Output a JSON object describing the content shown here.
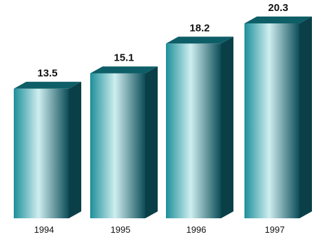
{
  "chart_data": {
    "type": "bar",
    "title": "",
    "xlabel": "",
    "ylabel": "",
    "categories": [
      "1994",
      "1995",
      "1996",
      "1997"
    ],
    "values": [
      13.5,
      15.1,
      18.2,
      20.3
    ],
    "value_labels": [
      "13.5",
      "15.1",
      "18.2",
      "20.3"
    ],
    "ylim": [
      0,
      20.3
    ],
    "grid": false,
    "legend": "none",
    "style": "3d-cylinder-like bars with teal gradient"
  },
  "colors": {
    "bar_light": "#cfeef0",
    "bar_mid": "#1d8f99",
    "bar_dark": "#0b4c57",
    "bar_top": "#0e5e68",
    "bar_side": "#0a3f48",
    "text": "#111111"
  }
}
